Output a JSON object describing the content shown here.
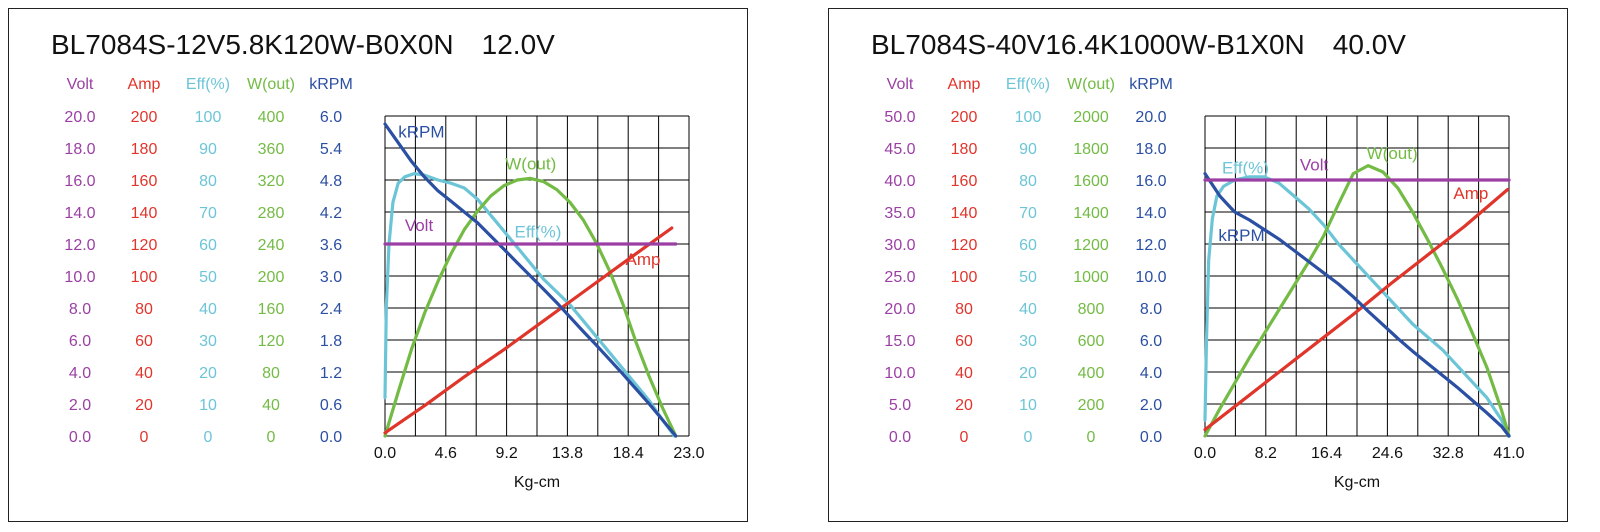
{
  "colors": {
    "volt": "#9b3fa5",
    "amp": "#e0352b",
    "eff": "#6cc5d7",
    "wout": "#73bb44",
    "krpm": "#2b4fa3",
    "grid": "#000000"
  },
  "chart_data": [
    {
      "type": "line",
      "title": "BL7084S-12V5.8K120W-B0X0N",
      "voltage_label": "12.0V",
      "xlabel": "Kg-cm",
      "x_ticks": [
        "0.0",
        "4.6",
        "9.2",
        "13.8",
        "18.4",
        "23.0"
      ],
      "xlim": [
        0,
        23
      ],
      "grid": true,
      "axes": [
        {
          "key": "volt",
          "label": "Volt",
          "ticks": [
            "20.0",
            "18.0",
            "16.0",
            "14.0",
            "12.0",
            "10.0",
            "8.0",
            "6.0",
            "4.0",
            "2.0",
            "0.0"
          ],
          "range": [
            0,
            20
          ]
        },
        {
          "key": "amp",
          "label": "Amp",
          "ticks": [
            "200",
            "180",
            "160",
            "140",
            "120",
            "100",
            "80",
            "60",
            "40",
            "20",
            "0"
          ],
          "range": [
            0,
            200
          ]
        },
        {
          "key": "eff",
          "label": "Eff(%)",
          "ticks": [
            "100",
            "90",
            "80",
            "70",
            "60",
            "50",
            "40",
            "30",
            "20",
            "10",
            "0"
          ],
          "range": [
            0,
            100
          ]
        },
        {
          "key": "wout",
          "label": "W(out)",
          "ticks": [
            "400",
            "360",
            "320",
            "280",
            "240",
            "200",
            "160",
            "120",
            "80",
            "40",
            "0"
          ],
          "range": [
            0,
            400
          ]
        },
        {
          "key": "krpm",
          "label": "kRPM",
          "ticks": [
            "6.0",
            "5.4",
            "4.8",
            "4.2",
            "3.6",
            "3.0",
            "2.4",
            "1.8",
            "1.2",
            "0.6",
            "0.0"
          ],
          "range": [
            0,
            6
          ]
        }
      ],
      "series": [
        {
          "name": "Volt",
          "axis": "volt",
          "points": [
            [
              0,
              12.0
            ],
            [
              22,
              12.0
            ]
          ],
          "label_at": [
            1.5,
            12.8
          ]
        },
        {
          "name": "Amp",
          "axis": "amp",
          "points": [
            [
              0,
              2
            ],
            [
              3,
              19
            ],
            [
              6,
              37
            ],
            [
              9,
              54
            ],
            [
              12,
              72
            ],
            [
              15,
              90
            ],
            [
              18,
              108
            ],
            [
              21.7,
              130
            ]
          ],
          "label_at": [
            18.2,
            107
          ]
        },
        {
          "name": "Eff(%)",
          "axis": "eff",
          "points": [
            [
              0,
              12
            ],
            [
              0.1,
              40
            ],
            [
              0.3,
              60
            ],
            [
              0.6,
              73
            ],
            [
              1.0,
              79
            ],
            [
              1.5,
              81
            ],
            [
              2.2,
              82
            ],
            [
              3,
              81.5
            ],
            [
              4,
              80
            ],
            [
              5,
              79
            ],
            [
              6,
              77.5
            ],
            [
              7,
              74
            ],
            [
              8,
              69
            ],
            [
              9,
              64
            ],
            [
              10,
              59
            ],
            [
              11,
              54
            ],
            [
              12,
              49
            ],
            [
              13,
              45
            ],
            [
              14,
              41
            ],
            [
              15,
              36
            ],
            [
              16,
              31
            ],
            [
              17,
              26
            ],
            [
              18,
              21
            ],
            [
              19,
              16
            ],
            [
              20,
              11
            ],
            [
              21,
              5
            ],
            [
              21.9,
              0
            ]
          ],
          "label_at": [
            9.8,
            62
          ]
        },
        {
          "name": "W(out)",
          "axis": "wout",
          "points": [
            [
              0,
              0
            ],
            [
              1,
              55
            ],
            [
              2,
              108
            ],
            [
              3,
              154
            ],
            [
              4,
              193
            ],
            [
              5,
              228
            ],
            [
              6,
              258
            ],
            [
              7,
              281
            ],
            [
              8,
              300
            ],
            [
              9,
              313
            ],
            [
              10,
              320
            ],
            [
              11,
              322
            ],
            [
              12,
              318
            ],
            [
              13,
              308
            ],
            [
              14,
              292
            ],
            [
              15,
              270
            ],
            [
              16,
              241
            ],
            [
              17,
              206
            ],
            [
              18,
              165
            ],
            [
              19,
              117
            ],
            [
              20,
              74
            ],
            [
              21,
              35
            ],
            [
              22,
              0
            ]
          ],
          "label_at": [
            9.1,
            333
          ]
        },
        {
          "name": "kRPM",
          "axis": "krpm",
          "points": [
            [
              0,
              5.85
            ],
            [
              1,
              5.5
            ],
            [
              2,
              5.15
            ],
            [
              3,
              4.85
            ],
            [
              4,
              4.6
            ],
            [
              5,
              4.4
            ],
            [
              6,
              4.2
            ],
            [
              7,
              4.0
            ],
            [
              8,
              3.75
            ],
            [
              9,
              3.5
            ],
            [
              10,
              3.25
            ],
            [
              11,
              3.0
            ],
            [
              12,
              2.75
            ],
            [
              13,
              2.5
            ],
            [
              14,
              2.23
            ],
            [
              15,
              1.96
            ],
            [
              16,
              1.7
            ],
            [
              17,
              1.43
            ],
            [
              18,
              1.16
            ],
            [
              19,
              0.88
            ],
            [
              20,
              0.6
            ],
            [
              21,
              0.3
            ],
            [
              22,
              0
            ]
          ],
          "label_at": [
            1.0,
            5.6
          ]
        }
      ]
    },
    {
      "type": "line",
      "title": "BL7084S-40V16.4K1000W-B1X0N",
      "voltage_label": "40.0V",
      "xlabel": "Kg-cm",
      "x_ticks": [
        "0.0",
        "8.2",
        "16.4",
        "24.6",
        "32.8",
        "41.0"
      ],
      "xlim": [
        0,
        41
      ],
      "grid": true,
      "axes": [
        {
          "key": "volt",
          "label": "Volt",
          "ticks": [
            "50.0",
            "45.0",
            "40.0",
            "35.0",
            "30.0",
            "25.0",
            "20.0",
            "15.0",
            "10.0",
            "5.0",
            "0.0"
          ],
          "range": [
            0,
            50
          ]
        },
        {
          "key": "amp",
          "label": "Amp",
          "ticks": [
            "200",
            "180",
            "160",
            "140",
            "120",
            "100",
            "80",
            "60",
            "40",
            "20",
            "0"
          ],
          "range": [
            0,
            200
          ]
        },
        {
          "key": "eff",
          "label": "Eff(%)",
          "ticks": [
            "100",
            "90",
            "80",
            "70",
            "60",
            "50",
            "40",
            "30",
            "20",
            "10",
            "0"
          ],
          "range": [
            0,
            100
          ]
        },
        {
          "key": "wout",
          "label": "W(out)",
          "ticks": [
            "2000",
            "1800",
            "1600",
            "1400",
            "1200",
            "1000",
            "800",
            "600",
            "400",
            "200",
            "0"
          ],
          "range": [
            0,
            2000
          ]
        },
        {
          "key": "krpm",
          "label": "kRPM",
          "ticks": [
            "20.0",
            "18.0",
            "16.0",
            "14.0",
            "12.0",
            "10.0",
            "8.0",
            "6.0",
            "4.0",
            "2.0",
            "0.0"
          ],
          "range": [
            0,
            20
          ]
        }
      ],
      "series": [
        {
          "name": "Volt",
          "axis": "volt",
          "points": [
            [
              0,
              40.0
            ],
            [
              41,
              40.0
            ]
          ],
          "label_at": [
            12.8,
            41.5
          ]
        },
        {
          "name": "Amp",
          "axis": "amp",
          "points": [
            [
              0,
              4
            ],
            [
              5,
              22
            ],
            [
              10,
              40
            ],
            [
              15,
              58
            ],
            [
              20,
              76
            ],
            [
              25,
              95
            ],
            [
              30,
              113
            ],
            [
              35,
              131
            ],
            [
              40.8,
              154
            ]
          ],
          "label_at": [
            33.5,
            148
          ]
        },
        {
          "name": "Eff(%)",
          "axis": "eff",
          "points": [
            [
              0,
              5
            ],
            [
              0.2,
              30
            ],
            [
              0.5,
              55
            ],
            [
              1,
              68
            ],
            [
              1.6,
              75
            ],
            [
              2.5,
              78
            ],
            [
              4,
              80
            ],
            [
              6,
              81
            ],
            [
              8,
              81
            ],
            [
              10,
              79
            ],
            [
              12,
              75
            ],
            [
              14,
              71
            ],
            [
              16,
              66
            ],
            [
              18,
              60
            ],
            [
              20,
              55
            ],
            [
              22,
              50
            ],
            [
              24,
              45
            ],
            [
              26,
              40
            ],
            [
              28,
              35
            ],
            [
              30,
              31
            ],
            [
              32,
              27
            ],
            [
              34,
              22
            ],
            [
              36,
              17
            ],
            [
              38,
              12
            ],
            [
              40,
              5
            ],
            [
              40.9,
              0
            ]
          ],
          "label_at": [
            2.3,
            82
          ]
        },
        {
          "name": "W(out)",
          "axis": "wout",
          "points": [
            [
              0,
              0
            ],
            [
              2,
              170
            ],
            [
              4,
              330
            ],
            [
              6,
              490
            ],
            [
              8,
              640
            ],
            [
              10,
              790
            ],
            [
              12,
              940
            ],
            [
              14,
              1090
            ],
            [
              16,
              1250
            ],
            [
              18,
              1450
            ],
            [
              20,
              1640
            ],
            [
              22,
              1690
            ],
            [
              24,
              1650
            ],
            [
              26,
              1550
            ],
            [
              28,
              1400
            ],
            [
              30,
              1230
            ],
            [
              32,
              1050
            ],
            [
              34,
              860
            ],
            [
              36,
              650
            ],
            [
              38,
              430
            ],
            [
              40,
              160
            ],
            [
              41,
              0
            ]
          ],
          "label_at": [
            21.8,
            1730
          ]
        },
        {
          "name": "kRPM",
          "axis": "krpm",
          "points": [
            [
              0,
              16.4
            ],
            [
              1,
              15.7
            ],
            [
              2,
              15.0
            ],
            [
              3,
              14.5
            ],
            [
              4,
              14.0
            ],
            [
              6,
              13.5
            ],
            [
              8,
              12.9
            ],
            [
              10,
              12.3
            ],
            [
              12,
              11.6
            ],
            [
              14,
              10.9
            ],
            [
              16,
              10.2
            ],
            [
              18,
              9.5
            ],
            [
              20,
              8.7
            ],
            [
              22,
              7.8
            ],
            [
              24,
              6.95
            ],
            [
              26,
              6.1
            ],
            [
              28,
              5.3
            ],
            [
              30,
              4.55
            ],
            [
              32,
              3.8
            ],
            [
              34,
              3.05
            ],
            [
              36,
              2.25
            ],
            [
              38,
              1.45
            ],
            [
              40,
              0.6
            ],
            [
              41,
              0.0
            ]
          ],
          "label_at": [
            1.8,
            12.2
          ]
        }
      ]
    }
  ]
}
